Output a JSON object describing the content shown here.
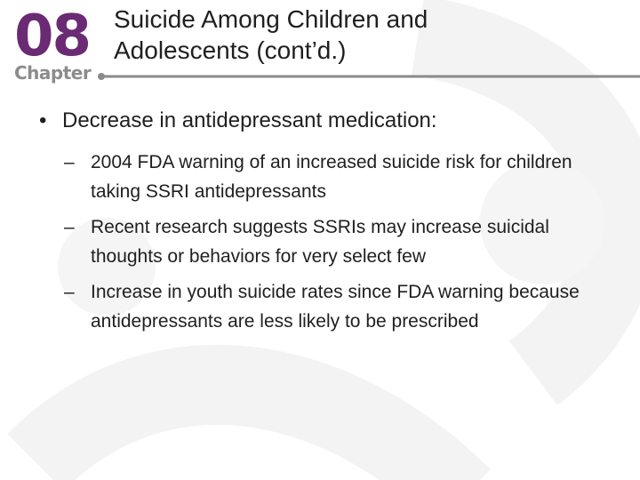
{
  "header": {
    "chapter_number": "08",
    "chapter_label": "Chapter",
    "title": "Suicide Among Children and\nAdolescents (cont’d.)"
  },
  "content": {
    "main_bullet": {
      "marker": "•",
      "text": "Decrease in antidepressant medication:"
    },
    "sub_bullets": [
      {
        "marker": "–",
        "text": "2004 FDA warning of an increased suicide risk for children taking SSRI antidepressants"
      },
      {
        "marker": "–",
        "text": "Recent research suggests SSRIs may increase suicidal thoughts or behaviors for very select few"
      },
      {
        "marker": "–",
        "text": "Increase in youth suicide rates since FDA warning because antidepressants are less likely to be prescribed"
      }
    ]
  },
  "colors": {
    "chapter_number": "#6b2a74",
    "chapter_label": "#8c8c8c",
    "rule": "#8a8a8a",
    "watermark": "#f3f3f3",
    "text": "#1f1f1f"
  }
}
